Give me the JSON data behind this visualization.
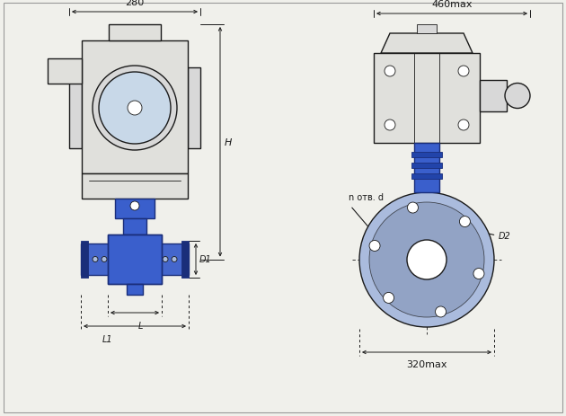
{
  "bg_color": "#f0f0eb",
  "line_color": "#1a1a1a",
  "blue_dark": "#1a2e7a",
  "blue_mid": "#2244aa",
  "blue_body": "#3a5fcc",
  "blue_light": "#6688dd",
  "blue_flange": "#4466cc",
  "blue_fill": "#8899cc",
  "blue_pale": "#aabbdd",
  "gray_fill": "#d8d8d8",
  "gray_dark": "#999999",
  "gray_mid": "#bbbbbb",
  "act_fill": "#e0e0dc",
  "act_dark": "#c0c0bc",
  "white": "#ffffff",
  "dim_color": "#222222",
  "annotation_280": "280",
  "annotation_460": "460max",
  "annotation_H": "H",
  "annotation_D1": "D1",
  "annotation_D2": "D2",
  "annotation_L": "L",
  "annotation_L1": "L1",
  "annotation_n": "n отв. d",
  "annotation_320": "320max"
}
